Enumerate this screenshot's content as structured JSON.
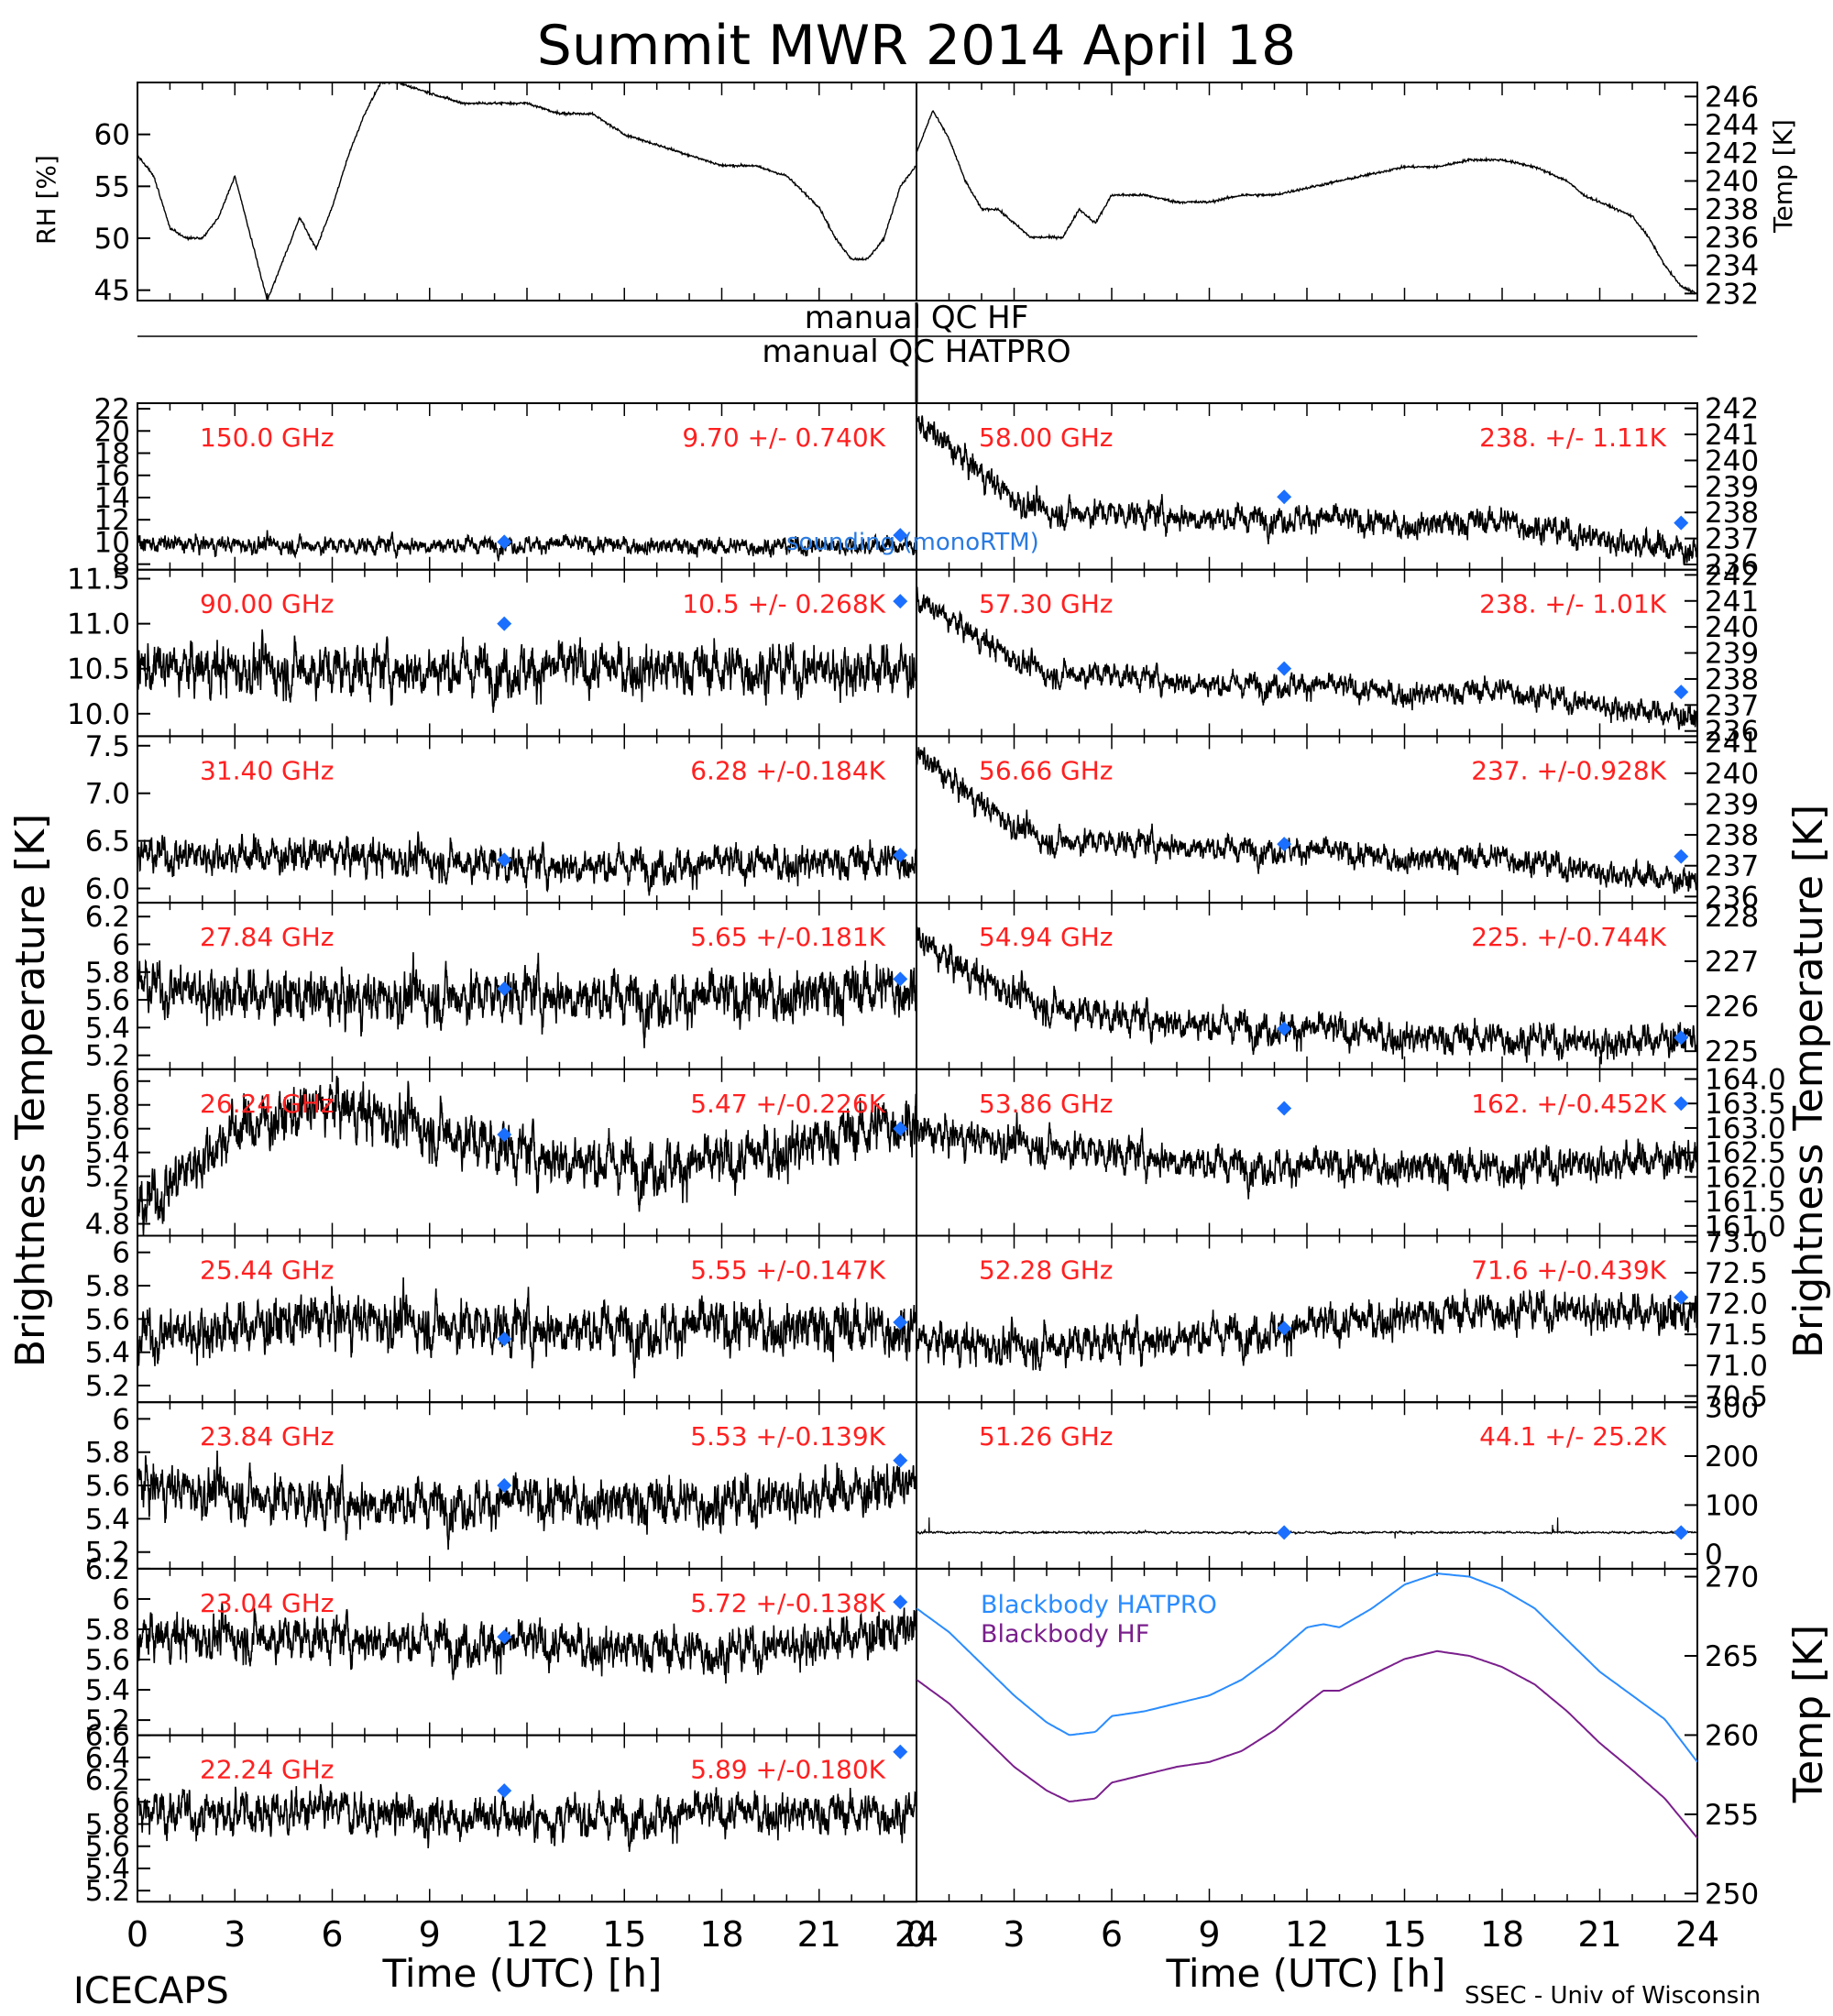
{
  "title": "Summit MWR 2014 April 18",
  "footer": {
    "left": "ICECAPS",
    "right": "SSEC - Univ of Wisconsin"
  },
  "common": {
    "xlabel": "Time (UTC) [h]",
    "xticks": [
      "0",
      "3",
      "6",
      "9",
      "12",
      "15",
      "18",
      "21",
      "24"
    ],
    "xlim": [
      0,
      24
    ],
    "left_ylabel": "Brightness Temperature [K]",
    "right_ylabel": "Brightness Temperature [K]",
    "bb_ylabel": "Temp [K]",
    "rh_ylabel": "RH [%]",
    "temp_ylabel": "Temp [K]"
  },
  "qc": {
    "hf": "manual QC HF",
    "hatpro": "manual QC HATPRO"
  },
  "annotation": {
    "sounding": "sounding (monoRTM)"
  },
  "colors": {
    "label": "#ff2020",
    "diamond": "#1a6fff",
    "bb_hatpro": "#2a8cff",
    "bb_hf": "#7a1f8c",
    "sounding": "#2a7ae0"
  },
  "chart_data": [
    {
      "id": "rh",
      "type": "line",
      "ylabel": "RH [%]",
      "ylim": [
        44,
        65
      ],
      "yticks": [
        45,
        50,
        55,
        60
      ],
      "x": [
        0,
        0.5,
        1,
        1.5,
        2,
        2.5,
        3,
        3.5,
        4,
        4.5,
        5,
        5.5,
        6,
        6.5,
        7,
        7.5,
        8,
        9,
        10,
        11,
        12,
        13,
        14,
        15,
        16,
        17,
        18,
        19,
        20,
        21,
        21.5,
        22,
        22.5,
        23,
        23.5,
        24
      ],
      "values": [
        58,
        56,
        51,
        50,
        50,
        52,
        56,
        50,
        44,
        48,
        52,
        49,
        53,
        58,
        62,
        65,
        65,
        64,
        63,
        63,
        63,
        62,
        62,
        60,
        59,
        58,
        57,
        57,
        56,
        53,
        50,
        48,
        48,
        50,
        55,
        57
      ]
    },
    {
      "id": "temp",
      "type": "line",
      "ylabel": "Temp [K]",
      "ylim": [
        231.5,
        247
      ],
      "yticks": [
        232,
        234,
        236,
        238,
        240,
        242,
        244,
        246
      ],
      "x": [
        0,
        0.5,
        1,
        1.5,
        2,
        2.5,
        3,
        3.5,
        4,
        4.5,
        5,
        5.5,
        6,
        7,
        8,
        9,
        10,
        11,
        12,
        13,
        14,
        15,
        16,
        17,
        18,
        19,
        20,
        20.5,
        21,
        21.5,
        22,
        22.5,
        23,
        23.5,
        24
      ],
      "values": [
        242,
        245,
        243,
        240,
        238,
        238,
        237,
        236,
        236,
        236,
        238,
        237,
        239,
        239,
        238.5,
        238.5,
        239,
        239,
        239.5,
        240,
        240.5,
        241,
        241,
        241.5,
        241.5,
        241,
        240,
        239,
        238.5,
        238,
        237.5,
        236,
        234,
        232.5,
        232
      ]
    },
    {
      "id": "150",
      "side": "left",
      "type": "scatter",
      "label": "150.0 GHz",
      "stats": "9.70 +/- 0.740K",
      "ylim": [
        7.5,
        22.5
      ],
      "yticks": [
        8,
        10,
        12,
        14,
        16,
        18,
        20,
        22
      ],
      "mean": 9.7,
      "noise": 0.74,
      "x": [
        0,
        6,
        12,
        18,
        24
      ],
      "values": [
        9.8,
        9.7,
        9.8,
        9.6,
        9.7
      ],
      "diamonds": [
        [
          11.3,
          10
        ],
        [
          23.5,
          10.6
        ]
      ]
    },
    {
      "id": "90",
      "side": "left",
      "type": "scatter",
      "label": "90.00 GHz",
      "stats": "10.5 +/- 0.268K",
      "ylim": [
        9.75,
        11.6
      ],
      "yticks": [
        10.0,
        10.5,
        11.0,
        11.5
      ],
      "mean": 10.5,
      "noise": 0.27,
      "x": [
        0,
        6,
        12,
        18,
        24
      ],
      "values": [
        10.5,
        10.5,
        10.5,
        10.5,
        10.5
      ],
      "diamonds": [
        [
          11.3,
          11.0
        ],
        [
          23.5,
          11.25
        ]
      ]
    },
    {
      "id": "31",
      "side": "left",
      "type": "scatter",
      "label": "31.40 GHz",
      "stats": "6.28 +/-0.184K",
      "ylim": [
        5.85,
        7.6
      ],
      "yticks": [
        6.0,
        6.5,
        7.0,
        7.5
      ],
      "mean": 6.28,
      "noise": 0.18,
      "x": [
        0,
        6,
        12,
        18,
        24
      ],
      "values": [
        6.35,
        6.35,
        6.25,
        6.25,
        6.3
      ],
      "diamonds": [
        [
          11.3,
          6.3
        ],
        [
          23.5,
          6.35
        ]
      ]
    },
    {
      "id": "27",
      "side": "left",
      "type": "scatter",
      "label": "27.84 GHz",
      "stats": "5.65 +/-0.181K",
      "ylim": [
        5.1,
        6.3
      ],
      "yticks": [
        5.2,
        5.4,
        5.6,
        5.8,
        6.0,
        6.2
      ],
      "mean": 5.65,
      "noise": 0.18,
      "x": [
        0,
        6,
        12,
        18,
        24
      ],
      "values": [
        5.7,
        5.6,
        5.65,
        5.6,
        5.7
      ],
      "diamonds": [
        [
          11.3,
          5.68
        ],
        [
          23.5,
          5.75
        ]
      ]
    },
    {
      "id": "26",
      "side": "left",
      "type": "scatter",
      "label": "26.24 GHz",
      "stats": "5.47 +/-0.226K",
      "ylim": [
        4.7,
        6.1
      ],
      "yticks": [
        4.8,
        5.0,
        5.2,
        5.4,
        5.6,
        5.8,
        6.0
      ],
      "mean": 5.47,
      "noise": 0.22,
      "x": [
        0,
        3,
        6,
        9,
        12,
        15,
        18,
        21,
        24
      ],
      "values": [
        4.9,
        5.6,
        5.8,
        5.6,
        5.4,
        5.3,
        5.3,
        5.5,
        5.7
      ],
      "diamonds": [
        [
          11.3,
          5.55
        ],
        [
          23.5,
          5.6
        ]
      ]
    },
    {
      "id": "25",
      "side": "left",
      "type": "scatter",
      "label": "25.44 GHz",
      "stats": "5.55 +/-0.147K",
      "ylim": [
        5.1,
        6.1
      ],
      "yticks": [
        5.2,
        5.4,
        5.6,
        5.8,
        6.0
      ],
      "mean": 5.55,
      "noise": 0.15,
      "x": [
        0,
        6,
        12,
        18,
        24
      ],
      "values": [
        5.5,
        5.6,
        5.55,
        5.55,
        5.55
      ],
      "diamonds": [
        [
          11.3,
          5.48
        ],
        [
          23.5,
          5.58
        ]
      ]
    },
    {
      "id": "23.84",
      "side": "left",
      "type": "scatter",
      "label": "23.84 GHz",
      "stats": "5.53 +/-0.139K",
      "ylim": [
        5.1,
        6.1
      ],
      "yticks": [
        5.2,
        5.4,
        5.6,
        5.8,
        6.0
      ],
      "mean": 5.53,
      "noise": 0.14,
      "x": [
        0,
        6,
        12,
        18,
        24
      ],
      "values": [
        5.6,
        5.5,
        5.5,
        5.5,
        5.6
      ],
      "diamonds": [
        [
          11.3,
          5.6
        ],
        [
          23.5,
          5.75
        ]
      ]
    },
    {
      "id": "23.04",
      "side": "left",
      "type": "scatter",
      "label": "23.04 GHz",
      "stats": "5.72 +/-0.138K",
      "ylim": [
        5.1,
        6.2
      ],
      "yticks": [
        5.2,
        5.4,
        5.6,
        5.8,
        6.0,
        6.2
      ],
      "mean": 5.72,
      "noise": 0.14,
      "x": [
        0,
        6,
        12,
        18,
        24
      ],
      "values": [
        5.75,
        5.75,
        5.7,
        5.65,
        5.8
      ],
      "diamonds": [
        [
          11.3,
          5.75
        ],
        [
          23.5,
          5.98
        ]
      ]
    },
    {
      "id": "22",
      "side": "left",
      "type": "scatter",
      "label": "22.24 GHz",
      "stats": "5.89 +/-0.180K",
      "ylim": [
        5.1,
        6.6
      ],
      "yticks": [
        5.2,
        5.4,
        5.6,
        5.8,
        6.0,
        6.2,
        6.4,
        6.6
      ],
      "mean": 5.89,
      "noise": 0.18,
      "x": [
        0,
        6,
        12,
        18,
        24
      ],
      "values": [
        5.9,
        5.9,
        5.85,
        5.9,
        5.9
      ],
      "diamonds": [
        [
          11.3,
          6.1
        ],
        [
          23.5,
          6.45
        ]
      ]
    },
    {
      "id": "58",
      "side": "right",
      "type": "scatter",
      "label": "58.00 GHz",
      "stats": "238. +/- 1.11K",
      "ylim": [
        235.8,
        242.2
      ],
      "yticks": [
        236,
        237,
        238,
        239,
        240,
        241,
        242
      ],
      "mean": 238,
      "noise": 0.5,
      "x": [
        0,
        1,
        2,
        3,
        4,
        6,
        9,
        12,
        15,
        18,
        21,
        24
      ],
      "values": [
        241.5,
        240.5,
        239.5,
        238.5,
        238,
        238,
        237.8,
        237.8,
        237.5,
        237.7,
        237,
        236.5
      ],
      "diamonds": [
        [
          11.3,
          238.6
        ],
        [
          23.5,
          237.6
        ]
      ]
    },
    {
      "id": "57",
      "side": "right",
      "type": "scatter",
      "label": "57.30 GHz",
      "stats": "238. +/- 1.01K",
      "ylim": [
        235.8,
        242.2
      ],
      "yticks": [
        236,
        237,
        238,
        239,
        240,
        241,
        242
      ],
      "mean": 238,
      "noise": 0.45,
      "x": [
        0,
        1,
        2,
        3,
        4,
        6,
        9,
        12,
        15,
        18,
        21,
        24
      ],
      "values": [
        241,
        240.3,
        239.5,
        238.8,
        238.2,
        238.2,
        237.8,
        237.8,
        237.4,
        237.6,
        237,
        236.5
      ],
      "diamonds": [
        [
          11.3,
          238.4
        ],
        [
          23.5,
          237.5
        ]
      ]
    },
    {
      "id": "56",
      "side": "right",
      "type": "scatter",
      "label": "56.66 GHz",
      "stats": "237. +/-0.928K",
      "ylim": [
        235.8,
        241.2
      ],
      "yticks": [
        236,
        237,
        238,
        239,
        240,
        241
      ],
      "mean": 237,
      "noise": 0.4,
      "x": [
        0,
        1,
        2,
        3,
        4,
        6,
        9,
        12,
        15,
        18,
        21,
        24
      ],
      "values": [
        240.6,
        239.8,
        239,
        238.3,
        237.8,
        237.8,
        237.6,
        237.5,
        237.2,
        237.3,
        236.8,
        236.5
      ],
      "diamonds": [
        [
          11.3,
          237.7
        ],
        [
          23.5,
          237.3
        ]
      ]
    },
    {
      "id": "54",
      "side": "right",
      "type": "scatter",
      "label": "54.94 GHz",
      "stats": "225. +/-0.744K",
      "ylim": [
        224.6,
        228.3
      ],
      "yticks": [
        225,
        226,
        227,
        228
      ],
      "mean": 225.5,
      "noise": 0.35,
      "x": [
        0,
        1,
        2,
        3,
        4,
        6,
        9,
        12,
        15,
        18,
        21,
        24
      ],
      "values": [
        227.5,
        227,
        226.6,
        226.3,
        226.0,
        225.8,
        225.6,
        225.5,
        225.3,
        225.3,
        225.2,
        225.3
      ],
      "diamonds": [
        [
          11.3,
          225.5
        ],
        [
          23.5,
          225.3
        ]
      ]
    },
    {
      "id": "53",
      "side": "right",
      "type": "scatter",
      "label": "53.86 GHz",
      "stats": "162. +/-0.452K",
      "ylim": [
        160.8,
        164.2
      ],
      "yticks": [
        161.0,
        161.5,
        162.0,
        162.5,
        163.0,
        163.5,
        164.0
      ],
      "mean": 162.3,
      "noise": 0.35,
      "x": [
        0,
        3,
        6,
        9,
        12,
        15,
        18,
        21,
        24
      ],
      "values": [
        162.9,
        162.7,
        162.5,
        162.3,
        162.2,
        162.2,
        162.2,
        162.3,
        162.4
      ],
      "diamonds": [
        [
          11.3,
          163.4
        ],
        [
          23.5,
          163.5
        ]
      ]
    },
    {
      "id": "52",
      "side": "right",
      "type": "scatter",
      "label": "52.28 GHz",
      "stats": "71.6 +/-0.439K",
      "ylim": [
        70.4,
        73.1
      ],
      "yticks": [
        70.5,
        71.0,
        71.5,
        72.0,
        72.5,
        73.0
      ],
      "mean": 71.6,
      "noise": 0.3,
      "x": [
        0,
        3,
        6,
        9,
        12,
        15,
        18,
        21,
        24
      ],
      "values": [
        71.4,
        71.3,
        71.4,
        71.5,
        71.6,
        71.8,
        71.9,
        71.9,
        71.8
      ],
      "diamonds": [
        [
          11.3,
          71.6
        ],
        [
          23.5,
          72.1
        ]
      ]
    },
    {
      "id": "51",
      "side": "right",
      "type": "scatter",
      "label": "51.26 GHz",
      "stats": "44.1 +/- 25.2K",
      "ylim": [
        -30,
        310
      ],
      "yticks": [
        0,
        100,
        200,
        300
      ],
      "mean": 44,
      "noise": 2,
      "x": [
        0,
        24
      ],
      "values": [
        44,
        44
      ],
      "diamonds": [
        [
          11.3,
          44
        ],
        [
          23.5,
          44
        ]
      ]
    },
    {
      "id": "bb",
      "side": "right",
      "type": "line",
      "ylim": [
        249.5,
        270.5
      ],
      "yticks": [
        250,
        255,
        260,
        265,
        270
      ],
      "x": [
        0,
        1,
        2,
        3,
        4,
        4.7,
        5.5,
        6,
        7,
        8,
        9,
        10,
        11,
        12,
        12.5,
        13,
        14,
        15,
        16,
        17,
        18,
        19,
        20,
        21,
        22,
        23,
        24
      ],
      "series": [
        {
          "name": "Blackbody HATPRO",
          "values": [
            268,
            266.5,
            264.5,
            262.5,
            260.8,
            260,
            260.2,
            261.2,
            261.5,
            262,
            262.5,
            263.5,
            265,
            266.8,
            267,
            266.8,
            268,
            269.5,
            270.2,
            270,
            269.2,
            268,
            266,
            264,
            262.5,
            261,
            258.3
          ]
        },
        {
          "name": "Blackbody HF",
          "values": [
            263.5,
            262,
            260,
            258,
            256.5,
            255.8,
            256,
            257,
            257.5,
            258,
            258.3,
            259,
            260.3,
            262,
            262.8,
            262.8,
            263.8,
            264.8,
            265.3,
            265,
            264.3,
            263.2,
            261.5,
            259.5,
            257.8,
            256,
            253.5
          ]
        }
      ]
    }
  ]
}
